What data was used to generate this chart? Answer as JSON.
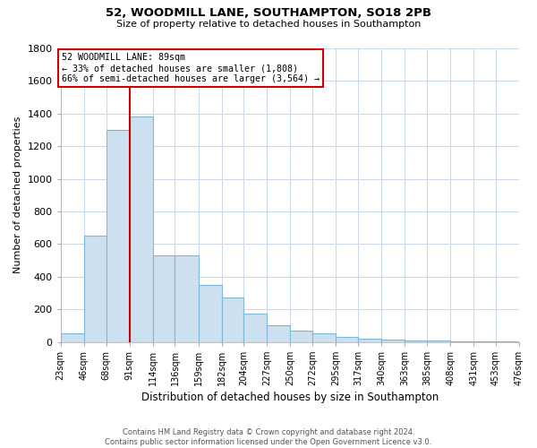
{
  "title1": "52, WOODMILL LANE, SOUTHAMPTON, SO18 2PB",
  "title2": "Size of property relative to detached houses in Southampton",
  "xlabel": "Distribution of detached houses by size in Southampton",
  "ylabel": "Number of detached properties",
  "footnote1": "Contains HM Land Registry data © Crown copyright and database right 2024.",
  "footnote2": "Contains public sector information licensed under the Open Government Licence v3.0.",
  "annotation_line1": "52 WOODMILL LANE: 89sqm",
  "annotation_line2": "← 33% of detached houses are smaller (1,808)",
  "annotation_line3": "66% of semi-detached houses are larger (3,564) →",
  "tick_labels": [
    "23sqm",
    "46sqm",
    "68sqm",
    "91sqm",
    "114sqm",
    "136sqm",
    "159sqm",
    "182sqm",
    "204sqm",
    "227sqm",
    "250sqm",
    "272sqm",
    "295sqm",
    "317sqm",
    "340sqm",
    "363sqm",
    "385sqm",
    "408sqm",
    "431sqm",
    "453sqm",
    "476sqm"
  ],
  "bar_left_edges": [
    23,
    46,
    68,
    91,
    114,
    136,
    159,
    182,
    204,
    227,
    250,
    272,
    295,
    317,
    340,
    363,
    385,
    408,
    431,
    453
  ],
  "values": [
    50,
    650,
    1300,
    1380,
    530,
    530,
    350,
    270,
    175,
    100,
    70,
    50,
    30,
    20,
    15,
    10,
    7,
    5,
    3,
    2
  ],
  "bar_color": "#cce0f0",
  "bar_edge_color": "#7db8d8",
  "vline_x": 91,
  "vline_color": "#cc0000",
  "box_color": "#cc0000",
  "ylim": [
    0,
    1800
  ],
  "yticks": [
    0,
    200,
    400,
    600,
    800,
    1000,
    1200,
    1400,
    1600,
    1800
  ],
  "background_color": "#ffffff",
  "grid_color": "#c8d8e8",
  "figsize": [
    6.0,
    5.0
  ],
  "dpi": 100
}
